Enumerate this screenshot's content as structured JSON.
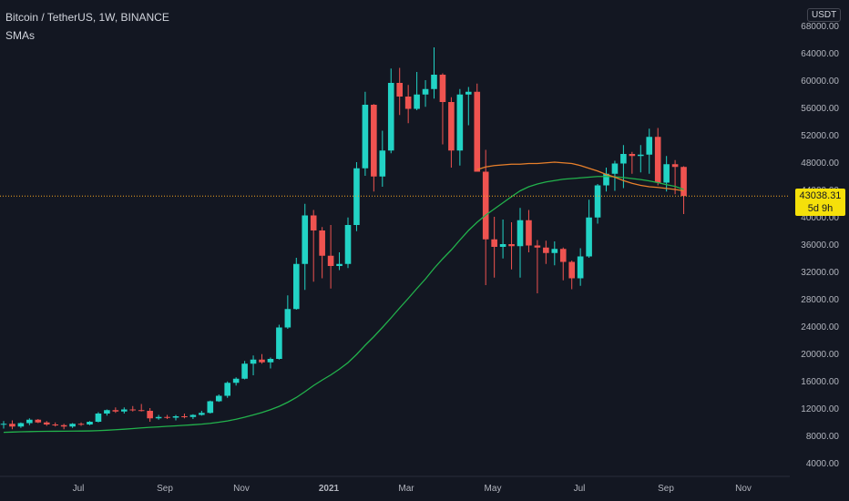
{
  "header": {
    "symbol_title": "Bitcoin / TetherUS, 1W, BINANCE",
    "indicator": "SMAs"
  },
  "price_axis": {
    "currency": "USDT"
  },
  "last_price": {
    "value": "43038.31",
    "countdown": "5d 9h"
  },
  "colors": {
    "background": "#131722",
    "up": "#26a69a",
    "up_bright": "#22d3c5",
    "down": "#ef5350",
    "sma_slow": "#22b24c",
    "sma_fast": "#e8802b",
    "last_price_line": "#f5a623",
    "tag": "#f5e00a",
    "axis_text": "#b2b5be"
  },
  "chart_data": {
    "type": "candlestick",
    "ylim": [
      2500,
      69000
    ],
    "y_ticks": [
      4000,
      8000,
      12000,
      16000,
      20000,
      24000,
      28000,
      32000,
      36000,
      40000,
      44000,
      48000,
      52000,
      56000,
      60000,
      64000,
      68000
    ],
    "x_labels": [
      "Jul",
      "Sep",
      "Nov",
      "2021",
      "Mar",
      "May",
      "Jul",
      "Sep",
      "Nov"
    ],
    "candles": [
      [
        9600,
        10100,
        9000,
        9700
      ],
      [
        9700,
        10200,
        8900,
        9300
      ],
      [
        9300,
        9900,
        9100,
        9800
      ],
      [
        9800,
        10500,
        9500,
        10300
      ],
      [
        10300,
        10400,
        9800,
        9900
      ],
      [
        9900,
        10100,
        9400,
        9600
      ],
      [
        9600,
        9900,
        9300,
        9500
      ],
      [
        9500,
        9700,
        8900,
        9300
      ],
      [
        9300,
        9800,
        9100,
        9700
      ],
      [
        9700,
        9900,
        9400,
        9600
      ],
      [
        9600,
        10100,
        9500,
        10000
      ],
      [
        10000,
        11400,
        9900,
        11200
      ],
      [
        11200,
        11800,
        10900,
        11700
      ],
      [
        11700,
        12100,
        11300,
        11500
      ],
      [
        11500,
        12100,
        11200,
        11800
      ],
      [
        11800,
        12300,
        11500,
        11700
      ],
      [
        11700,
        12600,
        11500,
        11600
      ],
      [
        11600,
        12000,
        10000,
        10500
      ],
      [
        10500,
        11000,
        10300,
        10700
      ],
      [
        10700,
        11000,
        10400,
        10600
      ],
      [
        10600,
        11000,
        10200,
        10800
      ],
      [
        10800,
        11200,
        10500,
        10700
      ],
      [
        10700,
        11100,
        10400,
        11000
      ],
      [
        11000,
        11600,
        10900,
        11300
      ],
      [
        11300,
        13100,
        11200,
        13000
      ],
      [
        13000,
        14000,
        12900,
        13800
      ],
      [
        13800,
        15900,
        13500,
        15700
      ],
      [
        15700,
        16500,
        15300,
        16300
      ],
      [
        16300,
        18900,
        16200,
        18500
      ],
      [
        18500,
        19700,
        16800,
        19100
      ],
      [
        19100,
        19900,
        18500,
        18700
      ],
      [
        18700,
        19400,
        17800,
        19200
      ],
      [
        19200,
        24200,
        19100,
        23800
      ],
      [
        23800,
        28500,
        23600,
        26500
      ],
      [
        26500,
        34000,
        26400,
        33100
      ],
      [
        33100,
        41900,
        29300,
        40200
      ],
      [
        40200,
        41000,
        30500,
        38000
      ],
      [
        38000,
        38500,
        31000,
        34300
      ],
      [
        34300,
        38800,
        29500,
        32800
      ],
      [
        32800,
        34800,
        32200,
        33100
      ],
      [
        33100,
        39900,
        32500,
        38800
      ],
      [
        38800,
        48000,
        37900,
        47100
      ],
      [
        47100,
        58300,
        46000,
        56400
      ],
      [
        56400,
        56500,
        43700,
        45900
      ],
      [
        45900,
        52600,
        44400,
        49700
      ],
      [
        49700,
        61700,
        49300,
        59600
      ],
      [
        59600,
        61800,
        54900,
        57600
      ],
      [
        57600,
        59300,
        53700,
        55800
      ],
      [
        55800,
        61200,
        55600,
        57900
      ],
      [
        57900,
        60000,
        56100,
        58700
      ],
      [
        58700,
        64800,
        57300,
        60800
      ],
      [
        60800,
        61000,
        50600,
        56800
      ],
      [
        56800,
        57500,
        47200,
        49700
      ],
      [
        49700,
        58700,
        47500,
        57900
      ],
      [
        57900,
        59000,
        53400,
        58300
      ],
      [
        58300,
        59500,
        46900,
        46600
      ],
      [
        46600,
        49800,
        30000,
        36700
      ],
      [
        36700,
        40000,
        31100,
        35600
      ],
      [
        35600,
        39600,
        33900,
        36000
      ],
      [
        36000,
        39200,
        32300,
        35700
      ],
      [
        35700,
        41300,
        31100,
        39500
      ],
      [
        39500,
        41000,
        34800,
        35800
      ],
      [
        35800,
        36600,
        28800,
        35500
      ],
      [
        35500,
        36500,
        33100,
        34700
      ],
      [
        34700,
        36400,
        32900,
        35300
      ],
      [
        35300,
        35500,
        30700,
        33400
      ],
      [
        33400,
        33600,
        29400,
        31000
      ],
      [
        31000,
        35400,
        29900,
        34200
      ],
      [
        34200,
        42500,
        34000,
        39900
      ],
      [
        39900,
        44800,
        39000,
        44600
      ],
      [
        44600,
        47200,
        43700,
        46300
      ],
      [
        46300,
        48200,
        43800,
        47800
      ],
      [
        47800,
        50500,
        44200,
        49200
      ],
      [
        49200,
        49500,
        46300,
        48900
      ],
      [
        48900,
        50500,
        46500,
        49100
      ],
      [
        49100,
        52900,
        46300,
        51700
      ],
      [
        51700,
        53000,
        44600,
        45000
      ],
      [
        45000,
        48900,
        43700,
        47700
      ],
      [
        47700,
        48300,
        43300,
        47300
      ],
      [
        47300,
        47400,
        40400,
        43038
      ]
    ],
    "sma_slow": [
      8450,
      8490,
      8530,
      8560,
      8580,
      8600,
      8610,
      8620,
      8630,
      8640,
      8660,
      8700,
      8760,
      8830,
      8910,
      9000,
      9100,
      9180,
      9250,
      9330,
      9400,
      9480,
      9560,
      9650,
      9770,
      9930,
      10120,
      10370,
      10660,
      11000,
      11350,
      11770,
      12250,
      12850,
      13550,
      14400,
      15300,
      16100,
      16850,
      17700,
      18650,
      19850,
      21200,
      22450,
      23800,
      25200,
      26650,
      28050,
      29500,
      30900,
      32450,
      33850,
      35150,
      36600,
      38000,
      39200,
      40250,
      41150,
      42050,
      42950,
      43800,
      44400,
      44800,
      45100,
      45300,
      45500,
      45600,
      45700,
      45800,
      45900,
      45900,
      45850,
      45750,
      45600,
      45450,
      45250,
      45000,
      44700,
      44450,
      44000
    ],
    "sma_fast_start": 55,
    "sma_fast": [
      46900,
      47300,
      47500,
      47600,
      47700,
      47700,
      47800,
      47800,
      47900,
      48000,
      47900,
      47800,
      47500,
      47100,
      46700,
      46200,
      45800,
      45300,
      44900,
      44600,
      44400,
      44300,
      44150,
      44000,
      43800
    ]
  }
}
